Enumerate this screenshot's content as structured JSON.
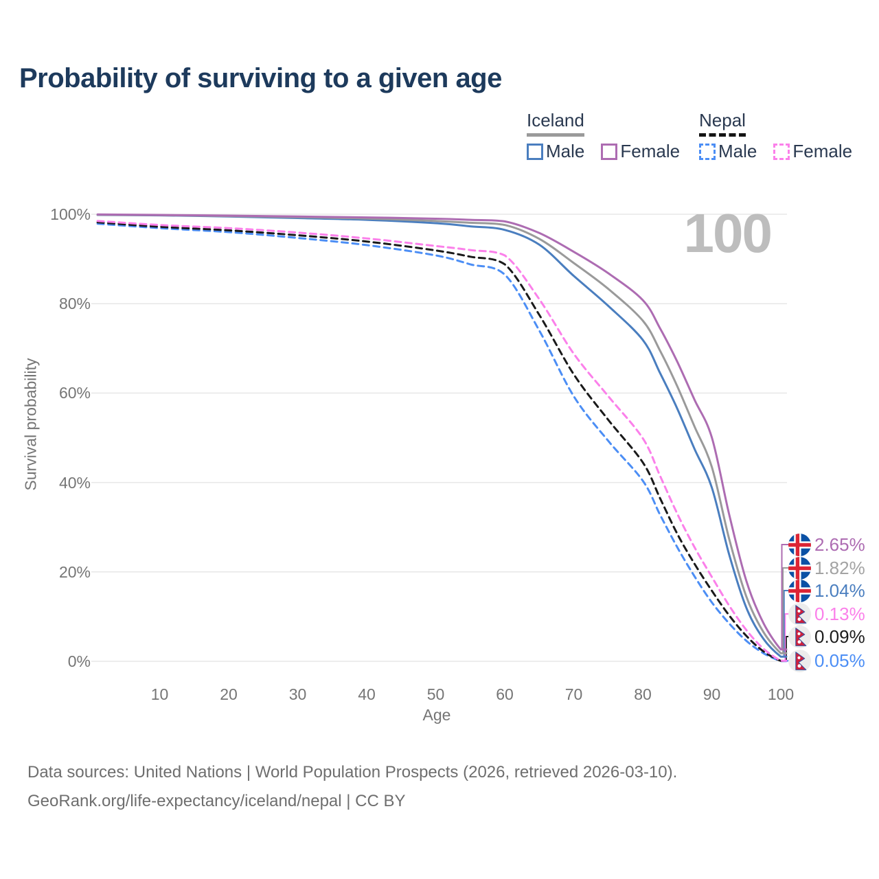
{
  "title": "Probability of surviving to a given age",
  "watermark": "100",
  "legend": {
    "groups": [
      {
        "name": "Iceland",
        "line_style": "solid",
        "underline_color": "#9a9a9a",
        "items": [
          {
            "label": "Male",
            "color": "#4a7ebf"
          },
          {
            "label": "Female",
            "color": "#ad6cb2"
          }
        ]
      },
      {
        "name": "Nepal",
        "line_style": "dashed",
        "underline_color": "#141414",
        "items": [
          {
            "label": "Male",
            "color": "#4c8ef5"
          },
          {
            "label": "Female",
            "color": "#fb80ea"
          }
        ]
      }
    ]
  },
  "end_labels": [
    {
      "country": "Iceland",
      "series": "Iceland Female",
      "value": "2.65%",
      "color": "#ad6cb2"
    },
    {
      "country": "Iceland",
      "series": "Iceland All",
      "value": "1.82%",
      "color": "#a3a3a3"
    },
    {
      "country": "Iceland",
      "series": "Iceland Male",
      "value": "1.04%",
      "color": "#4a7ebf"
    },
    {
      "country": "Nepal",
      "series": "Nepal Female",
      "value": "0.13%",
      "color": "#fb80ea"
    },
    {
      "country": "Nepal",
      "series": "Nepal All",
      "value": "0.09%",
      "color": "#1c1c1c"
    },
    {
      "country": "Nepal",
      "series": "Nepal Male",
      "value": "0.05%",
      "color": "#4c8ef5"
    }
  ],
  "footer": {
    "line1": "Data sources: United Nations | World Population Prospects (2026, retrieved 2026-03-10).",
    "line2": "GeoRank.org/life-expectancy/iceland/nepal | CC BY"
  },
  "chart_data": {
    "type": "line",
    "title": "Probability of surviving to a given age",
    "xlabel": "Age",
    "ylabel": "Survival probability",
    "xlim": [
      0,
      105
    ],
    "ylim": [
      0,
      100
    ],
    "grid": "horizontal",
    "hovered_age": "100",
    "x_ticks": [
      10,
      20,
      30,
      40,
      50,
      60,
      70,
      80,
      90,
      100
    ],
    "y_ticks": [
      {
        "label": "0%",
        "value": 0
      },
      {
        "label": "20%",
        "value": 20
      },
      {
        "label": "40%",
        "value": 40
      },
      {
        "label": "60%",
        "value": 60
      },
      {
        "label": "80%",
        "value": 80
      },
      {
        "label": "100%",
        "value": 100
      }
    ],
    "ages": [
      1,
      10,
      20,
      30,
      40,
      50,
      55,
      60,
      65,
      70,
      75,
      80,
      82.5,
      85,
      87.5,
      90,
      92.5,
      95,
      97.5,
      100
    ],
    "series": [
      {
        "id": "nepal-male",
        "name": "Nepal Male",
        "color": "#4c8ef5",
        "dash": true,
        "label_rank": 5,
        "end_value_label": "0.05%",
        "values": [
          97.9,
          96.9,
          96.0,
          94.7,
          93.1,
          90.8,
          88.8,
          86.5,
          74.0,
          59.3,
          49.3,
          40.4,
          32.8,
          25.5,
          19.0,
          13.2,
          8.5,
          4.6,
          1.8,
          0.05
        ]
      },
      {
        "id": "nepal-all",
        "name": "Nepal",
        "color": "#1a1a1a",
        "dash": true,
        "label_rank": 4,
        "end_value_label": "0.09%",
        "values": [
          98.2,
          97.2,
          96.4,
          95.3,
          93.9,
          91.9,
          90.5,
          88.8,
          77.5,
          64.2,
          54.0,
          44.5,
          36.5,
          28.5,
          21.8,
          15.8,
          10.3,
          5.7,
          2.2,
          0.09
        ]
      },
      {
        "id": "nepal-female",
        "name": "Nepal Female",
        "color": "#fb80ea",
        "dash": true,
        "label_rank": 3,
        "end_value_label": "0.13%",
        "values": [
          98.5,
          97.6,
          96.9,
          95.9,
          94.6,
          92.9,
          92.0,
          90.8,
          81.0,
          68.8,
          59.3,
          49.9,
          41.5,
          33.0,
          25.5,
          18.9,
          12.5,
          7.0,
          2.8,
          0.13
        ]
      },
      {
        "id": "iceland-male",
        "name": "Iceland Male",
        "color": "#4a7ebf",
        "dash": false,
        "label_rank": 2,
        "end_value_label": "1.04%",
        "values": [
          99.85,
          99.75,
          99.5,
          99.15,
          98.75,
          98.0,
          97.3,
          96.5,
          93.2,
          86.2,
          79.5,
          71.9,
          64.5,
          56.5,
          47.5,
          38.9,
          24.0,
          12.0,
          5.0,
          1.04
        ]
      },
      {
        "id": "iceland-all",
        "name": "Iceland",
        "color": "#9a9a9a",
        "dash": false,
        "label_rank": 1,
        "end_value_label": "1.82%",
        "values": [
          99.9,
          99.8,
          99.6,
          99.35,
          99.05,
          98.5,
          98.1,
          97.6,
          94.5,
          89.1,
          83.3,
          76.2,
          69.5,
          61.5,
          52.5,
          43.5,
          27.5,
          14.5,
          6.5,
          1.82
        ]
      },
      {
        "id": "iceland-female",
        "name": "Iceland Female",
        "color": "#ad6cb2",
        "dash": false,
        "label_rank": 0,
        "end_value_label": "2.65%",
        "values": [
          99.95,
          99.85,
          99.7,
          99.5,
          99.3,
          99.0,
          98.75,
          98.4,
          95.8,
          91.6,
          86.8,
          80.8,
          74.5,
          67.0,
          58.5,
          50.1,
          33.0,
          18.0,
          8.5,
          2.65
        ]
      }
    ]
  }
}
